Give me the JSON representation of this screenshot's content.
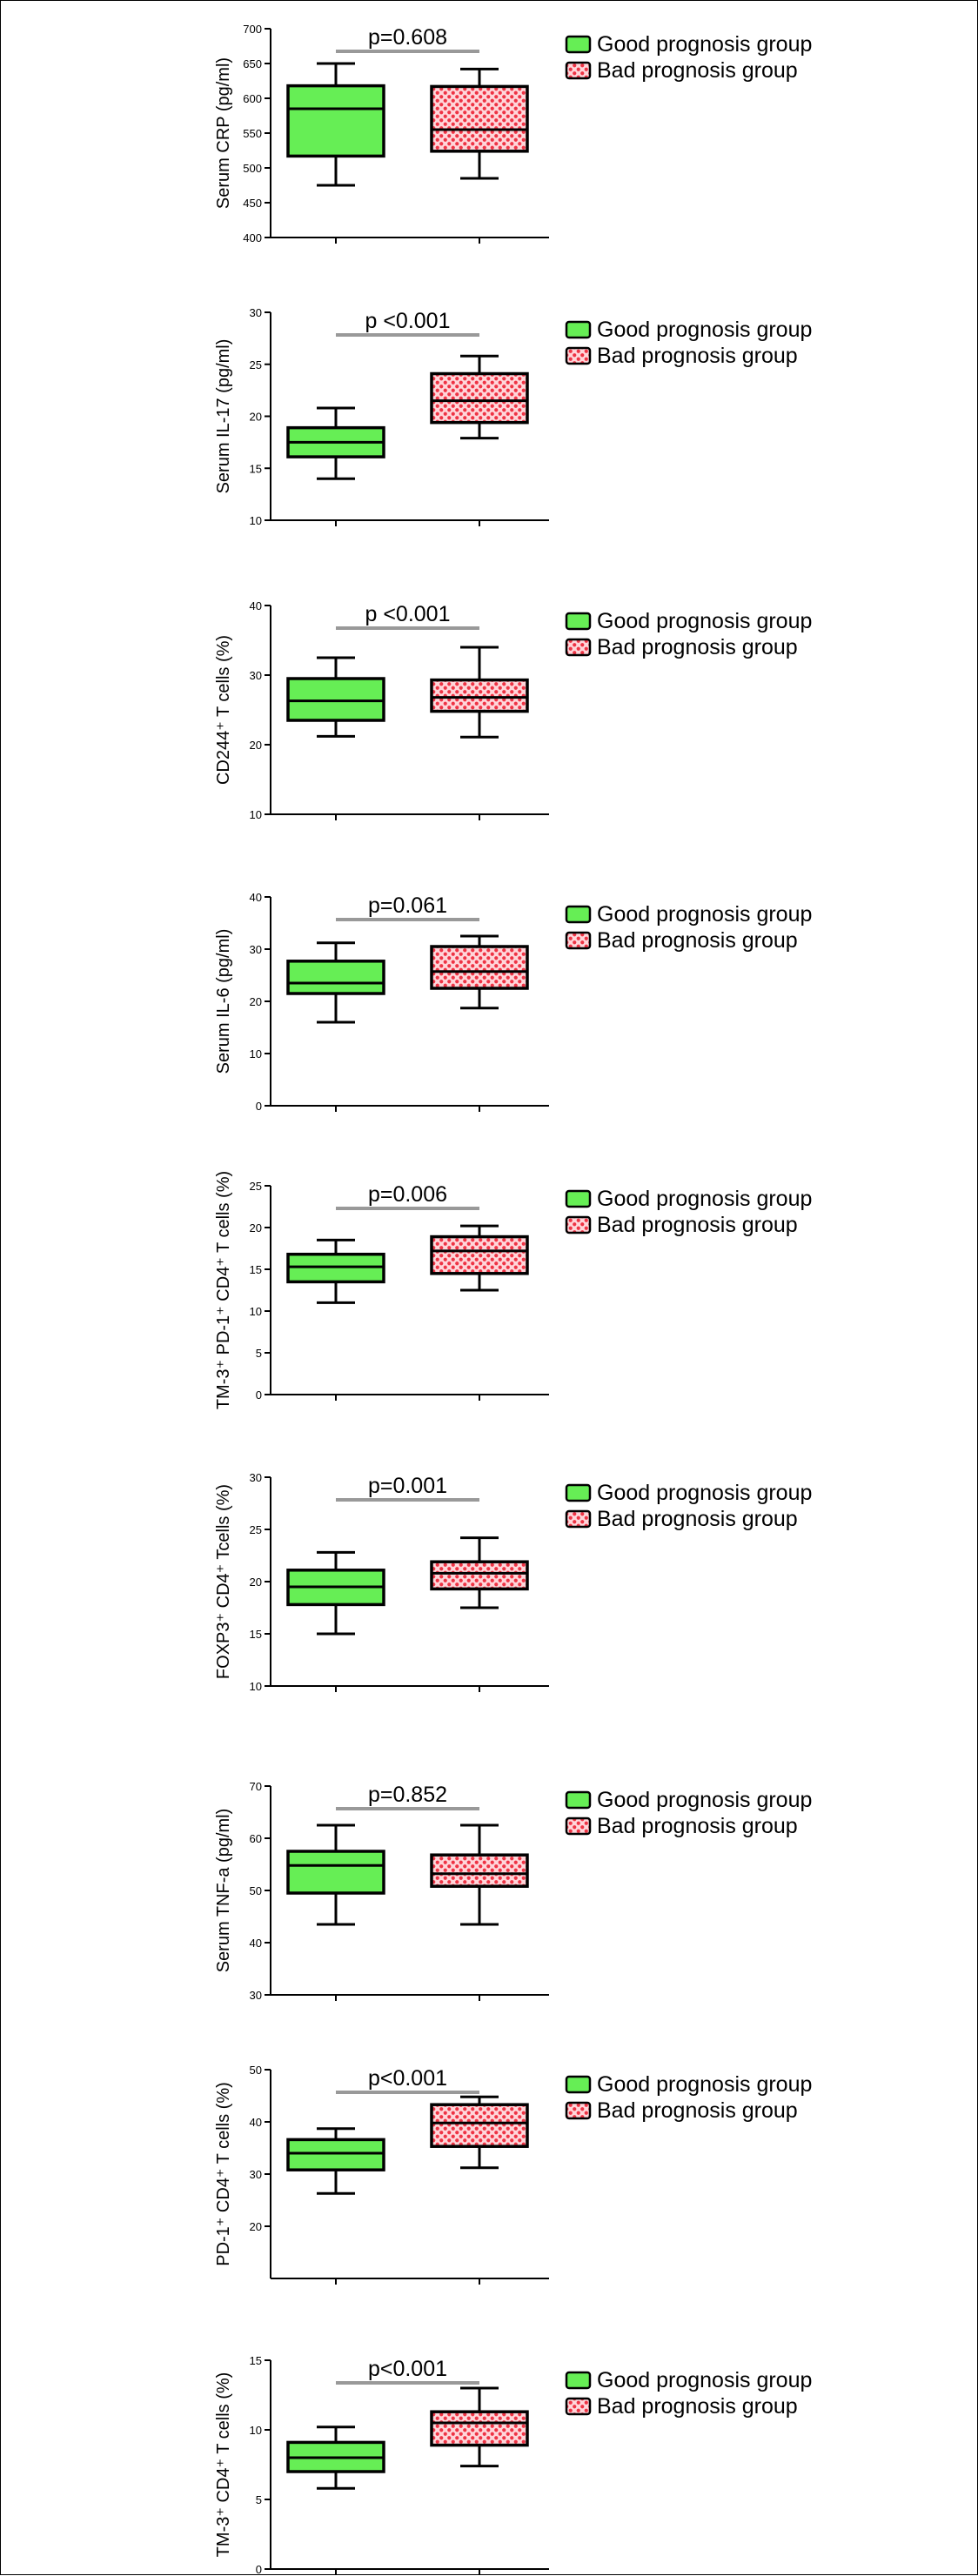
{
  "colors": {
    "good_fill": "#66ee55",
    "bad_fill": "#ee3344",
    "bad_hatch": "#ffd6da",
    "pbar": "#999999",
    "stroke": "#000000"
  },
  "legend_labels": [
    "Good prognosis group",
    "Bad prognosis group"
  ],
  "chart_data": [
    {
      "type": "box",
      "ylabel": "Serum CRP (pg/ml)",
      "ylim": [
        400,
        700
      ],
      "yticks": [
        400,
        450,
        500,
        550,
        600,
        650,
        700
      ],
      "p_value": "p=0.608",
      "legend": "right",
      "series": [
        {
          "name": "Good prognosis group",
          "min": 475,
          "q1": 517,
          "median": 585,
          "q3": 618,
          "max": 650
        },
        {
          "name": "Bad prognosis group",
          "min": 485,
          "q1": 524,
          "median": 555,
          "q3": 617,
          "max": 642
        }
      ]
    },
    {
      "type": "box",
      "ylabel": "Serum IL-17 (pg/ml)",
      "ylim": [
        10,
        30
      ],
      "yticks": [
        10,
        15,
        20,
        25,
        30
      ],
      "p_value": "p <0.001",
      "legend": "right",
      "series": [
        {
          "name": "Good prognosis group",
          "min": 14,
          "q1": 16.1,
          "median": 17.5,
          "q3": 18.9,
          "max": 20.8
        },
        {
          "name": "Bad prognosis group",
          "min": 17.9,
          "q1": 19.4,
          "median": 21.5,
          "q3": 24.1,
          "max": 25.8
        }
      ]
    },
    {
      "type": "box",
      "ylabel": "CD244⁺ T cells (%)",
      "ylim": [
        10,
        40
      ],
      "yticks": [
        10,
        20,
        30,
        40
      ],
      "p_value": "p <0.001",
      "legend": "right",
      "series": [
        {
          "name": "Good prognosis group",
          "min": 21.2,
          "q1": 23.5,
          "median": 26.3,
          "q3": 29.5,
          "max": 32.5
        },
        {
          "name": "Bad prognosis group",
          "min": 21.1,
          "q1": 24.8,
          "median": 26.8,
          "q3": 29.3,
          "max": 34
        }
      ]
    },
    {
      "type": "box",
      "ylabel": "Serum IL-6 (pg/ml)",
      "ylim": [
        0,
        40
      ],
      "yticks": [
        0,
        10,
        20,
        30,
        40
      ],
      "p_value": "p=0.061",
      "legend": "right",
      "series": [
        {
          "name": "Good prognosis group",
          "min": 16,
          "q1": 21.5,
          "median": 23.5,
          "q3": 27.7,
          "max": 31.2
        },
        {
          "name": "Bad prognosis group",
          "min": 18.7,
          "q1": 22.5,
          "median": 25.7,
          "q3": 30.5,
          "max": 32.5
        }
      ]
    },
    {
      "type": "box",
      "ylabel": "TM-3⁺ PD-1⁺ CD4⁺ T cells (%)",
      "ylim": [
        0,
        25
      ],
      "yticks": [
        0,
        5,
        10,
        15,
        20,
        25
      ],
      "p_value": "p=0.006",
      "legend": "right",
      "series": [
        {
          "name": "Good prognosis group",
          "min": 11,
          "q1": 13.5,
          "median": 15.3,
          "q3": 16.8,
          "max": 18.5
        },
        {
          "name": "Bad prognosis group",
          "min": 12.5,
          "q1": 14.5,
          "median": 17.2,
          "q3": 18.9,
          "max": 20.2
        }
      ]
    },
    {
      "type": "box",
      "ylabel": "FOXP3⁺ CD4⁺ Tcells (%)",
      "ylim": [
        10,
        30
      ],
      "yticks": [
        10,
        15,
        20,
        25,
        30
      ],
      "p_value": "p=0.001",
      "legend": "right",
      "series": [
        {
          "name": "Good prognosis group",
          "min": 15,
          "q1": 17.8,
          "median": 19.5,
          "q3": 21.1,
          "max": 22.8
        },
        {
          "name": "Bad prognosis group",
          "min": 17.5,
          "q1": 19.3,
          "median": 20.8,
          "q3": 21.9,
          "max": 24.2
        }
      ]
    },
    {
      "type": "box",
      "ylabel": "Serum TNF-a (pg/ml)",
      "ylim": [
        30,
        70
      ],
      "yticks": [
        30,
        40,
        50,
        60,
        70
      ],
      "p_value": "p=0.852",
      "legend": "right",
      "series": [
        {
          "name": "Good prognosis group",
          "min": 43.5,
          "q1": 49.5,
          "median": 54.8,
          "q3": 57.5,
          "max": 62.5
        },
        {
          "name": "Bad prognosis group",
          "min": 43.5,
          "q1": 50.8,
          "median": 53.2,
          "q3": 56.8,
          "max": 62.5
        }
      ]
    },
    {
      "type": "box",
      "ylabel": "PD-1⁺ CD4⁺ T cells (%)",
      "ylim": [
        10,
        50
      ],
      "yticks": [
        20,
        30,
        40,
        50
      ],
      "p_value": "p<0.001",
      "legend": "right",
      "series": [
        {
          "name": "Good prognosis group",
          "min": 26.3,
          "q1": 30.8,
          "median": 34,
          "q3": 36.6,
          "max": 38.7
        },
        {
          "name": "Bad prognosis group",
          "min": 31.2,
          "q1": 35.3,
          "median": 39.8,
          "q3": 43.3,
          "max": 44.8
        }
      ]
    },
    {
      "type": "box",
      "ylabel": "TM-3⁺ CD4⁺ T cells (%)",
      "ylim": [
        0,
        15
      ],
      "yticks": [
        0,
        5,
        10,
        15
      ],
      "p_value": "p<0.001",
      "legend": "right",
      "series": [
        {
          "name": "Good prognosis group",
          "min": 5.8,
          "q1": 7,
          "median": 8,
          "q3": 9.1,
          "max": 10.2
        },
        {
          "name": "Bad prognosis group",
          "min": 7.4,
          "q1": 8.9,
          "median": 10.5,
          "q3": 11.3,
          "max": 13
        }
      ]
    }
  ]
}
